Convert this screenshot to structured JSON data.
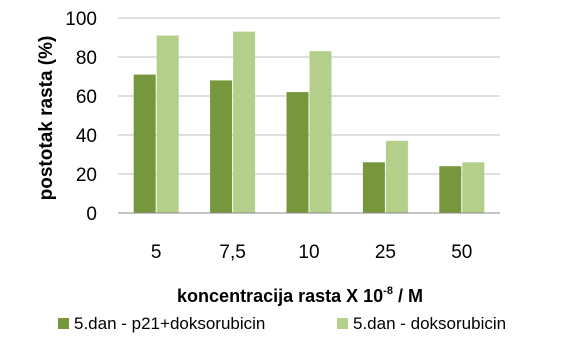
{
  "chart_data": {
    "type": "bar",
    "categories": [
      "5",
      "7,5",
      "10",
      "25",
      "50"
    ],
    "series": [
      {
        "name": "5.dan - p21+doksorubicin",
        "values": [
          71,
          68,
          62,
          26,
          24
        ]
      },
      {
        "name": "5.dan - doksorubicin",
        "values": [
          91,
          93,
          83,
          37,
          26
        ]
      }
    ],
    "ylabel": "postotak rasta (%)",
    "xlabel": "koncentracija rasta X 10",
    "xlabel_exp": "-8",
    "xlabel_unit": " / M",
    "ylim": [
      0,
      100
    ],
    "yticks": [
      0,
      20,
      40,
      60,
      80,
      100
    ],
    "grid": true,
    "legend_position": "bottom",
    "colors": [
      "#77973d",
      "#b3cf8a"
    ]
  }
}
